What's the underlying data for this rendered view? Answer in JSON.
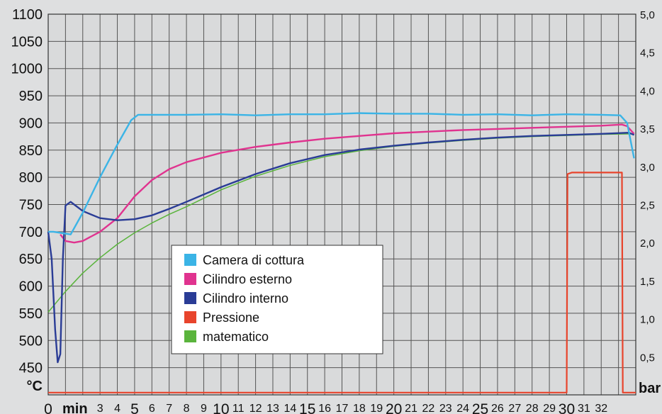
{
  "chart_data": {
    "type": "line",
    "y_left": {
      "unit": "°C",
      "range": [
        400,
        1100
      ],
      "ticks": [
        "1100",
        "1050",
        "1000",
        "950",
        "900",
        "850",
        "800",
        "750",
        "700",
        "650",
        "600",
        "550",
        "500",
        "450"
      ]
    },
    "y_right": {
      "unit": "bar",
      "range": [
        0,
        5.0
      ],
      "ticks": [
        "5,0",
        "4,5",
        "4,0",
        "3,5",
        "3,0",
        "2,5",
        "2,0",
        "1,5",
        "1,0",
        "0,5"
      ]
    },
    "x": {
      "unit": "min",
      "range": [
        0,
        34
      ],
      "tick_labels": [
        {
          "v": 0,
          "t": "0"
        },
        {
          "v": 3,
          "t": "3"
        },
        {
          "v": 4,
          "t": "4"
        },
        {
          "v": 5,
          "t": "5"
        },
        {
          "v": 6,
          "t": "6"
        },
        {
          "v": 7,
          "t": "7"
        },
        {
          "v": 8,
          "t": "8"
        },
        {
          "v": 9,
          "t": "9"
        },
        {
          "v": 10,
          "t": "10"
        },
        {
          "v": 11,
          "t": "11"
        },
        {
          "v": 12,
          "t": "12"
        },
        {
          "v": 13,
          "t": "13"
        },
        {
          "v": 14,
          "t": "14"
        },
        {
          "v": 15,
          "t": "15"
        },
        {
          "v": 16,
          "t": "16"
        },
        {
          "v": 17,
          "t": "17"
        },
        {
          "v": 18,
          "t": "18"
        },
        {
          "v": 19,
          "t": "19"
        },
        {
          "v": 20,
          "t": "20"
        },
        {
          "v": 21,
          "t": "21"
        },
        {
          "v": 22,
          "t": "22"
        },
        {
          "v": 23,
          "t": "23"
        },
        {
          "v": 24,
          "t": "24"
        },
        {
          "v": 25,
          "t": "25"
        },
        {
          "v": 26,
          "t": "26"
        },
        {
          "v": 27,
          "t": "27"
        },
        {
          "v": 28,
          "t": "28"
        },
        {
          "v": 29,
          "t": "29"
        },
        {
          "v": 30,
          "t": "30"
        },
        {
          "v": 31,
          "t": "31"
        },
        {
          "v": 32,
          "t": "32"
        }
      ]
    },
    "grid": true,
    "legend": {
      "placement": "center",
      "entries": [
        "Camera di cottura",
        "Cilindro esterno",
        "Cilindro interno",
        "Pressione",
        "matematico"
      ]
    },
    "series": [
      {
        "name": "Camera di cottura",
        "color": "#3bb4e6",
        "axis": "left",
        "x": [
          0,
          0.3,
          1.3,
          2.0,
          3.0,
          4.0,
          4.8,
          5.2,
          6,
          8,
          10,
          12,
          14,
          16,
          18,
          20,
          22,
          24,
          26,
          28,
          30,
          32,
          33.1,
          33.5,
          33.9
        ],
        "y": [
          700,
          700,
          695,
          735,
          800,
          860,
          905,
          915,
          915,
          915,
          916,
          914,
          916,
          916,
          918,
          917,
          917,
          915,
          916,
          914,
          916,
          915,
          914,
          900,
          835
        ]
      },
      {
        "name": "Cilindro esterno",
        "color": "#e0338f",
        "axis": "left",
        "x": [
          0.7,
          1.0,
          1.5,
          2.0,
          3.0,
          4.0,
          5.0,
          6.0,
          7.0,
          8.0,
          10,
          12,
          14,
          16,
          18,
          20,
          22,
          24,
          26,
          28,
          30,
          32,
          33.2,
          33.5,
          33.9
        ],
        "y": [
          695,
          683,
          680,
          683,
          700,
          725,
          765,
          795,
          815,
          828,
          845,
          856,
          864,
          871,
          876,
          881,
          884,
          887,
          889,
          891,
          893,
          895,
          897,
          894,
          880
        ]
      },
      {
        "name": "Cilindro interno",
        "color": "#2a3c96",
        "axis": "left",
        "x": [
          0,
          0.2,
          0.4,
          0.55,
          0.7,
          0.85,
          1.0,
          1.3,
          1.5,
          2.0,
          3.0,
          4.0,
          5.0,
          6.0,
          7.0,
          8.0,
          10,
          12,
          14,
          16,
          18,
          20,
          22,
          24,
          26,
          28,
          30,
          32,
          33.6,
          33.9
        ],
        "y": [
          700,
          650,
          520,
          460,
          475,
          650,
          748,
          755,
          750,
          738,
          725,
          721,
          723,
          730,
          742,
          755,
          782,
          806,
          826,
          841,
          851,
          858,
          864,
          869,
          873,
          876,
          878,
          880,
          882,
          878
        ]
      },
      {
        "name": "matematico",
        "color": "#5ab43c",
        "axis": "left",
        "x": [
          0,
          1,
          2,
          3,
          4,
          5,
          6,
          7,
          8,
          10,
          12,
          14,
          16,
          18,
          20,
          22,
          24,
          26,
          28,
          30,
          32,
          33.9
        ],
        "y": [
          552,
          590,
          624,
          652,
          677,
          698,
          716,
          732,
          746,
          777,
          802,
          822,
          838,
          849,
          857,
          863,
          868,
          872,
          875,
          877,
          879,
          880
        ]
      },
      {
        "name": "Pressione",
        "color": "#e8442c",
        "axis": "right",
        "x": [
          0,
          30,
          30.05,
          30.3,
          32,
          33.2,
          33.25,
          34
        ],
        "y": [
          0.03,
          0.03,
          2.9,
          2.92,
          2.92,
          2.92,
          0.03,
          0.03
        ]
      }
    ]
  }
}
